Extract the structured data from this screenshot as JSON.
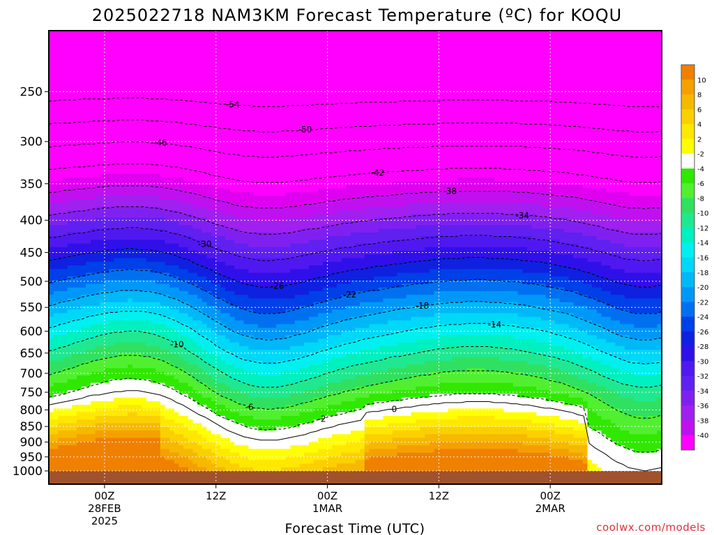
{
  "chart_data": {
    "type": "heatmap",
    "title": "2025022718 NAM3KM Forecast Temperature (ºC) for KOQU",
    "xlabel": "Forecast Time (UTC)",
    "ylabel": "",
    "credit": "coolwx.com/models",
    "y_axis": {
      "scale": "log",
      "reversed": true,
      "range": [
        200,
        1000
      ],
      "ticks": [
        250,
        300,
        350,
        400,
        450,
        500,
        550,
        600,
        650,
        700,
        750,
        800,
        850,
        900,
        950,
        1000
      ]
    },
    "x_axis": {
      "range": [
        "2025-02-27 18Z",
        "2025-03-02 12Z"
      ],
      "ticks": [
        {
          "time": "2025-02-28 00Z",
          "lines": [
            "00Z",
            "28FEB",
            "2025"
          ]
        },
        {
          "time": "2025-02-28 12Z",
          "lines": [
            "12Z"
          ]
        },
        {
          "time": "2025-03-01 00Z",
          "lines": [
            "00Z",
            "1MAR"
          ]
        },
        {
          "time": "2025-03-01 12Z",
          "lines": [
            "12Z"
          ]
        },
        {
          "time": "2025-03-02 00Z",
          "lines": [
            "00Z",
            "2MAR"
          ]
        }
      ]
    },
    "grid": true,
    "colorbar": {
      "placement": "right",
      "labels": [
        "10",
        "8",
        "6",
        "4",
        "2",
        "-2",
        "-4",
        "-6",
        "-8",
        "-10",
        "-12",
        "-14",
        "-16",
        "-18",
        "-20",
        "-22",
        "-24",
        "-26",
        "-28",
        "-30",
        "-32",
        "-34",
        "-36",
        "-38",
        "-40"
      ]
    },
    "contours": [
      {
        "value": -46,
        "label": "-46"
      },
      {
        "value": -54,
        "label": "-54"
      },
      {
        "value": -50,
        "label": "-50"
      },
      {
        "value": -42,
        "label": "-42"
      },
      {
        "value": -38,
        "label": "-38"
      },
      {
        "value": -34,
        "label": "-34"
      },
      {
        "value": -30,
        "label": "-30"
      },
      {
        "value": -26,
        "label": "-26"
      },
      {
        "value": -22,
        "label": "-22"
      },
      {
        "value": -18,
        "label": "-18"
      },
      {
        "value": -14,
        "label": "-14"
      },
      {
        "value": -10,
        "label": "-10"
      },
      {
        "value": -6,
        "label": "-6"
      },
      {
        "value": -2,
        "label": "-2"
      },
      {
        "value": 0,
        "label": "0"
      }
    ],
    "ground_color": "#a0522d"
  }
}
